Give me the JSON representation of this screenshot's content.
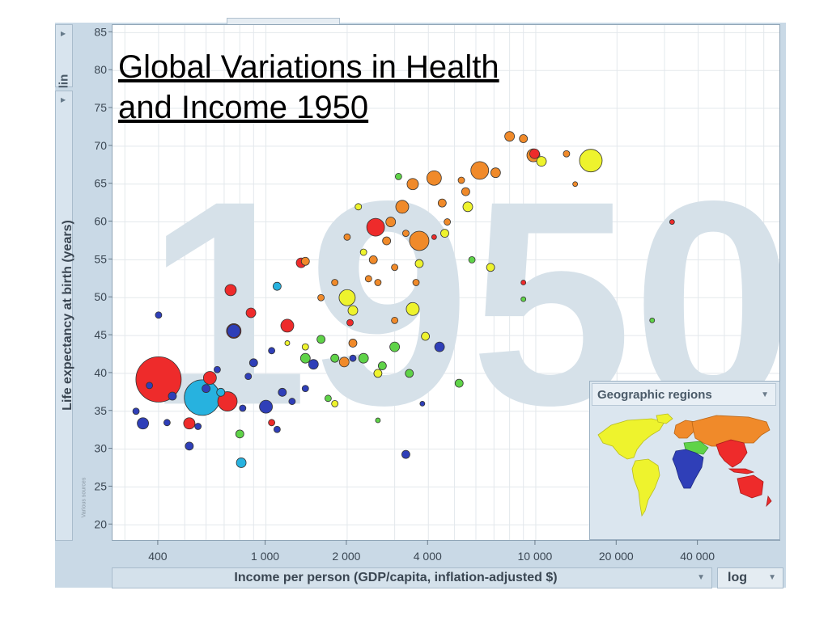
{
  "title_lines": [
    "Global Variations in Health",
    "and Income 1950"
  ],
  "watermark_year": "1950",
  "y_scale_toggle": "lin",
  "x_scale_toggle": "log",
  "source_note": "Various sources",
  "regions_panel_title": "Geographic regions",
  "colors": {
    "red": "#ee2b2b",
    "blue": "#2f3fb8",
    "cyan": "#27b2df",
    "green": "#5fd348",
    "yellow": "#eef32d",
    "orange": "#f08a2a",
    "watermark": "#d6e1e9",
    "grid": "#e3e8ec"
  },
  "chart_data": {
    "type": "scatter",
    "title": "Global Variations in Health and Income 1950",
    "xlabel": "Income per person (GDP/capita, inflation-adjusted $)",
    "ylabel": "Life expectancy at birth (years)",
    "x_scale": "log",
    "xlim": [
      270,
      80000
    ],
    "ylim": [
      18,
      86
    ],
    "x_ticks": [
      400,
      1000,
      2000,
      4000,
      10000,
      20000,
      40000
    ],
    "x_tick_labels": [
      "400",
      "1 000",
      "2 000",
      "4 000",
      "10 000",
      "20 000",
      "40 000"
    ],
    "y_ticks": [
      20,
      25,
      30,
      35,
      40,
      45,
      50,
      55,
      60,
      65,
      70,
      75,
      80,
      85
    ],
    "grid": true,
    "legend": "geographic region map, bottom-right",
    "series": [
      {
        "color": "red",
        "points": [
          {
            "x": 400,
            "y": 39.2,
            "size": 28
          },
          {
            "x": 720,
            "y": 36.3,
            "size": 12
          },
          {
            "x": 760,
            "y": 45.6,
            "size": 9
          },
          {
            "x": 620,
            "y": 39.4,
            "size": 8
          },
          {
            "x": 740,
            "y": 51.0,
            "size": 7
          },
          {
            "x": 1200,
            "y": 46.3,
            "size": 8
          },
          {
            "x": 880,
            "y": 48.0,
            "size": 6
          },
          {
            "x": 520,
            "y": 33.4,
            "size": 7
          },
          {
            "x": 2550,
            "y": 59.3,
            "size": 11
          },
          {
            "x": 1350,
            "y": 54.6,
            "size": 6
          },
          {
            "x": 2050,
            "y": 46.7,
            "size": 4
          },
          {
            "x": 9900,
            "y": 69.0,
            "size": 6
          },
          {
            "x": 1050,
            "y": 33.5,
            "size": 4
          },
          {
            "x": 4200,
            "y": 58.0,
            "size": 3
          },
          {
            "x": 9000,
            "y": 52.0,
            "size": 3
          },
          {
            "x": 32000,
            "y": 60.0,
            "size": 3
          }
        ]
      },
      {
        "color": "cyan",
        "points": [
          {
            "x": 580,
            "y": 36.8,
            "size": 22
          },
          {
            "x": 810,
            "y": 28.2,
            "size": 6
          },
          {
            "x": 680,
            "y": 37.5,
            "size": 5
          },
          {
            "x": 1100,
            "y": 51.5,
            "size": 5
          }
        ]
      },
      {
        "color": "blue",
        "points": [
          {
            "x": 400,
            "y": 47.7,
            "size": 4
          },
          {
            "x": 350,
            "y": 33.4,
            "size": 7
          },
          {
            "x": 450,
            "y": 37.0,
            "size": 5
          },
          {
            "x": 520,
            "y": 30.4,
            "size": 5
          },
          {
            "x": 760,
            "y": 45.6,
            "size": 8
          },
          {
            "x": 1000,
            "y": 35.6,
            "size": 8
          },
          {
            "x": 900,
            "y": 41.4,
            "size": 5
          },
          {
            "x": 1500,
            "y": 41.2,
            "size": 6
          },
          {
            "x": 1050,
            "y": 43.0,
            "size": 4
          },
          {
            "x": 600,
            "y": 38.0,
            "size": 5
          },
          {
            "x": 370,
            "y": 38.4,
            "size": 4
          },
          {
            "x": 330,
            "y": 35.0,
            "size": 4
          },
          {
            "x": 430,
            "y": 33.5,
            "size": 4
          },
          {
            "x": 660,
            "y": 40.5,
            "size": 4
          },
          {
            "x": 860,
            "y": 39.6,
            "size": 4
          },
          {
            "x": 3300,
            "y": 29.3,
            "size": 5
          },
          {
            "x": 4400,
            "y": 43.5,
            "size": 6
          },
          {
            "x": 3800,
            "y": 36.0,
            "size": 3
          },
          {
            "x": 1150,
            "y": 37.5,
            "size": 5
          },
          {
            "x": 1250,
            "y": 36.3,
            "size": 4
          },
          {
            "x": 2100,
            "y": 42.0,
            "size": 4
          },
          {
            "x": 1100,
            "y": 32.6,
            "size": 4
          },
          {
            "x": 820,
            "y": 35.4,
            "size": 4
          },
          {
            "x": 1400,
            "y": 38.0,
            "size": 4
          },
          {
            "x": 560,
            "y": 33.0,
            "size": 4
          }
        ]
      },
      {
        "color": "green",
        "points": [
          {
            "x": 800,
            "y": 32.0,
            "size": 5
          },
          {
            "x": 1400,
            "y": 42.0,
            "size": 6
          },
          {
            "x": 1600,
            "y": 44.5,
            "size": 5
          },
          {
            "x": 1800,
            "y": 42.0,
            "size": 5
          },
          {
            "x": 2300,
            "y": 42.0,
            "size": 6
          },
          {
            "x": 2700,
            "y": 41.0,
            "size": 5
          },
          {
            "x": 3000,
            "y": 43.5,
            "size": 6
          },
          {
            "x": 3400,
            "y": 40.0,
            "size": 5
          },
          {
            "x": 5200,
            "y": 38.7,
            "size": 5
          },
          {
            "x": 2600,
            "y": 33.8,
            "size": 3
          },
          {
            "x": 1700,
            "y": 36.7,
            "size": 4
          },
          {
            "x": 27000,
            "y": 47.0,
            "size": 3
          },
          {
            "x": 9000,
            "y": 49.8,
            "size": 3
          },
          {
            "x": 5800,
            "y": 55.0,
            "size": 4
          },
          {
            "x": 3100,
            "y": 66.0,
            "size": 4
          }
        ]
      },
      {
        "color": "yellow",
        "points": [
          {
            "x": 16000,
            "y": 68.1,
            "size": 14
          },
          {
            "x": 2000,
            "y": 50.0,
            "size": 10
          },
          {
            "x": 3500,
            "y": 48.5,
            "size": 8
          },
          {
            "x": 2100,
            "y": 48.3,
            "size": 6
          },
          {
            "x": 3900,
            "y": 44.9,
            "size": 5
          },
          {
            "x": 2600,
            "y": 40.0,
            "size": 5
          },
          {
            "x": 2300,
            "y": 56.0,
            "size": 4
          },
          {
            "x": 5600,
            "y": 62.0,
            "size": 6
          },
          {
            "x": 4600,
            "y": 58.5,
            "size": 5
          },
          {
            "x": 10500,
            "y": 68.0,
            "size": 6
          },
          {
            "x": 6800,
            "y": 54.0,
            "size": 5
          },
          {
            "x": 1400,
            "y": 43.5,
            "size": 4
          },
          {
            "x": 1200,
            "y": 44.0,
            "size": 3
          },
          {
            "x": 1800,
            "y": 36.0,
            "size": 4
          },
          {
            "x": 2200,
            "y": 62.0,
            "size": 4
          },
          {
            "x": 3700,
            "y": 54.5,
            "size": 5
          }
        ]
      },
      {
        "color": "orange",
        "points": [
          {
            "x": 3700,
            "y": 57.5,
            "size": 12
          },
          {
            "x": 6200,
            "y": 66.8,
            "size": 11
          },
          {
            "x": 4200,
            "y": 65.8,
            "size": 9
          },
          {
            "x": 9800,
            "y": 68.8,
            "size": 8
          },
          {
            "x": 3200,
            "y": 62.0,
            "size": 8
          },
          {
            "x": 3500,
            "y": 65.0,
            "size": 7
          },
          {
            "x": 7100,
            "y": 66.5,
            "size": 6
          },
          {
            "x": 2900,
            "y": 60.0,
            "size": 6
          },
          {
            "x": 8000,
            "y": 71.3,
            "size": 6
          },
          {
            "x": 5500,
            "y": 64.0,
            "size": 5
          },
          {
            "x": 4500,
            "y": 62.5,
            "size": 5
          },
          {
            "x": 2500,
            "y": 55.0,
            "size": 5
          },
          {
            "x": 1800,
            "y": 52.0,
            "size": 4
          },
          {
            "x": 2000,
            "y": 58.0,
            "size": 4
          },
          {
            "x": 2800,
            "y": 57.5,
            "size": 5
          },
          {
            "x": 1400,
            "y": 54.8,
            "size": 5
          },
          {
            "x": 3000,
            "y": 54.0,
            "size": 4
          },
          {
            "x": 3300,
            "y": 58.5,
            "size": 4
          },
          {
            "x": 2600,
            "y": 52.0,
            "size": 4
          },
          {
            "x": 2100,
            "y": 44.0,
            "size": 5
          },
          {
            "x": 1950,
            "y": 41.5,
            "size": 6
          },
          {
            "x": 3000,
            "y": 47.0,
            "size": 4
          },
          {
            "x": 9000,
            "y": 71.0,
            "size": 5
          },
          {
            "x": 13000,
            "y": 69.0,
            "size": 4
          },
          {
            "x": 14000,
            "y": 65.0,
            "size": 3
          },
          {
            "x": 1600,
            "y": 50.0,
            "size": 4
          },
          {
            "x": 2400,
            "y": 52.5,
            "size": 4
          },
          {
            "x": 3600,
            "y": 52.0,
            "size": 4
          },
          {
            "x": 4700,
            "y": 60.0,
            "size": 4
          },
          {
            "x": 5300,
            "y": 65.5,
            "size": 4
          }
        ]
      }
    ]
  }
}
